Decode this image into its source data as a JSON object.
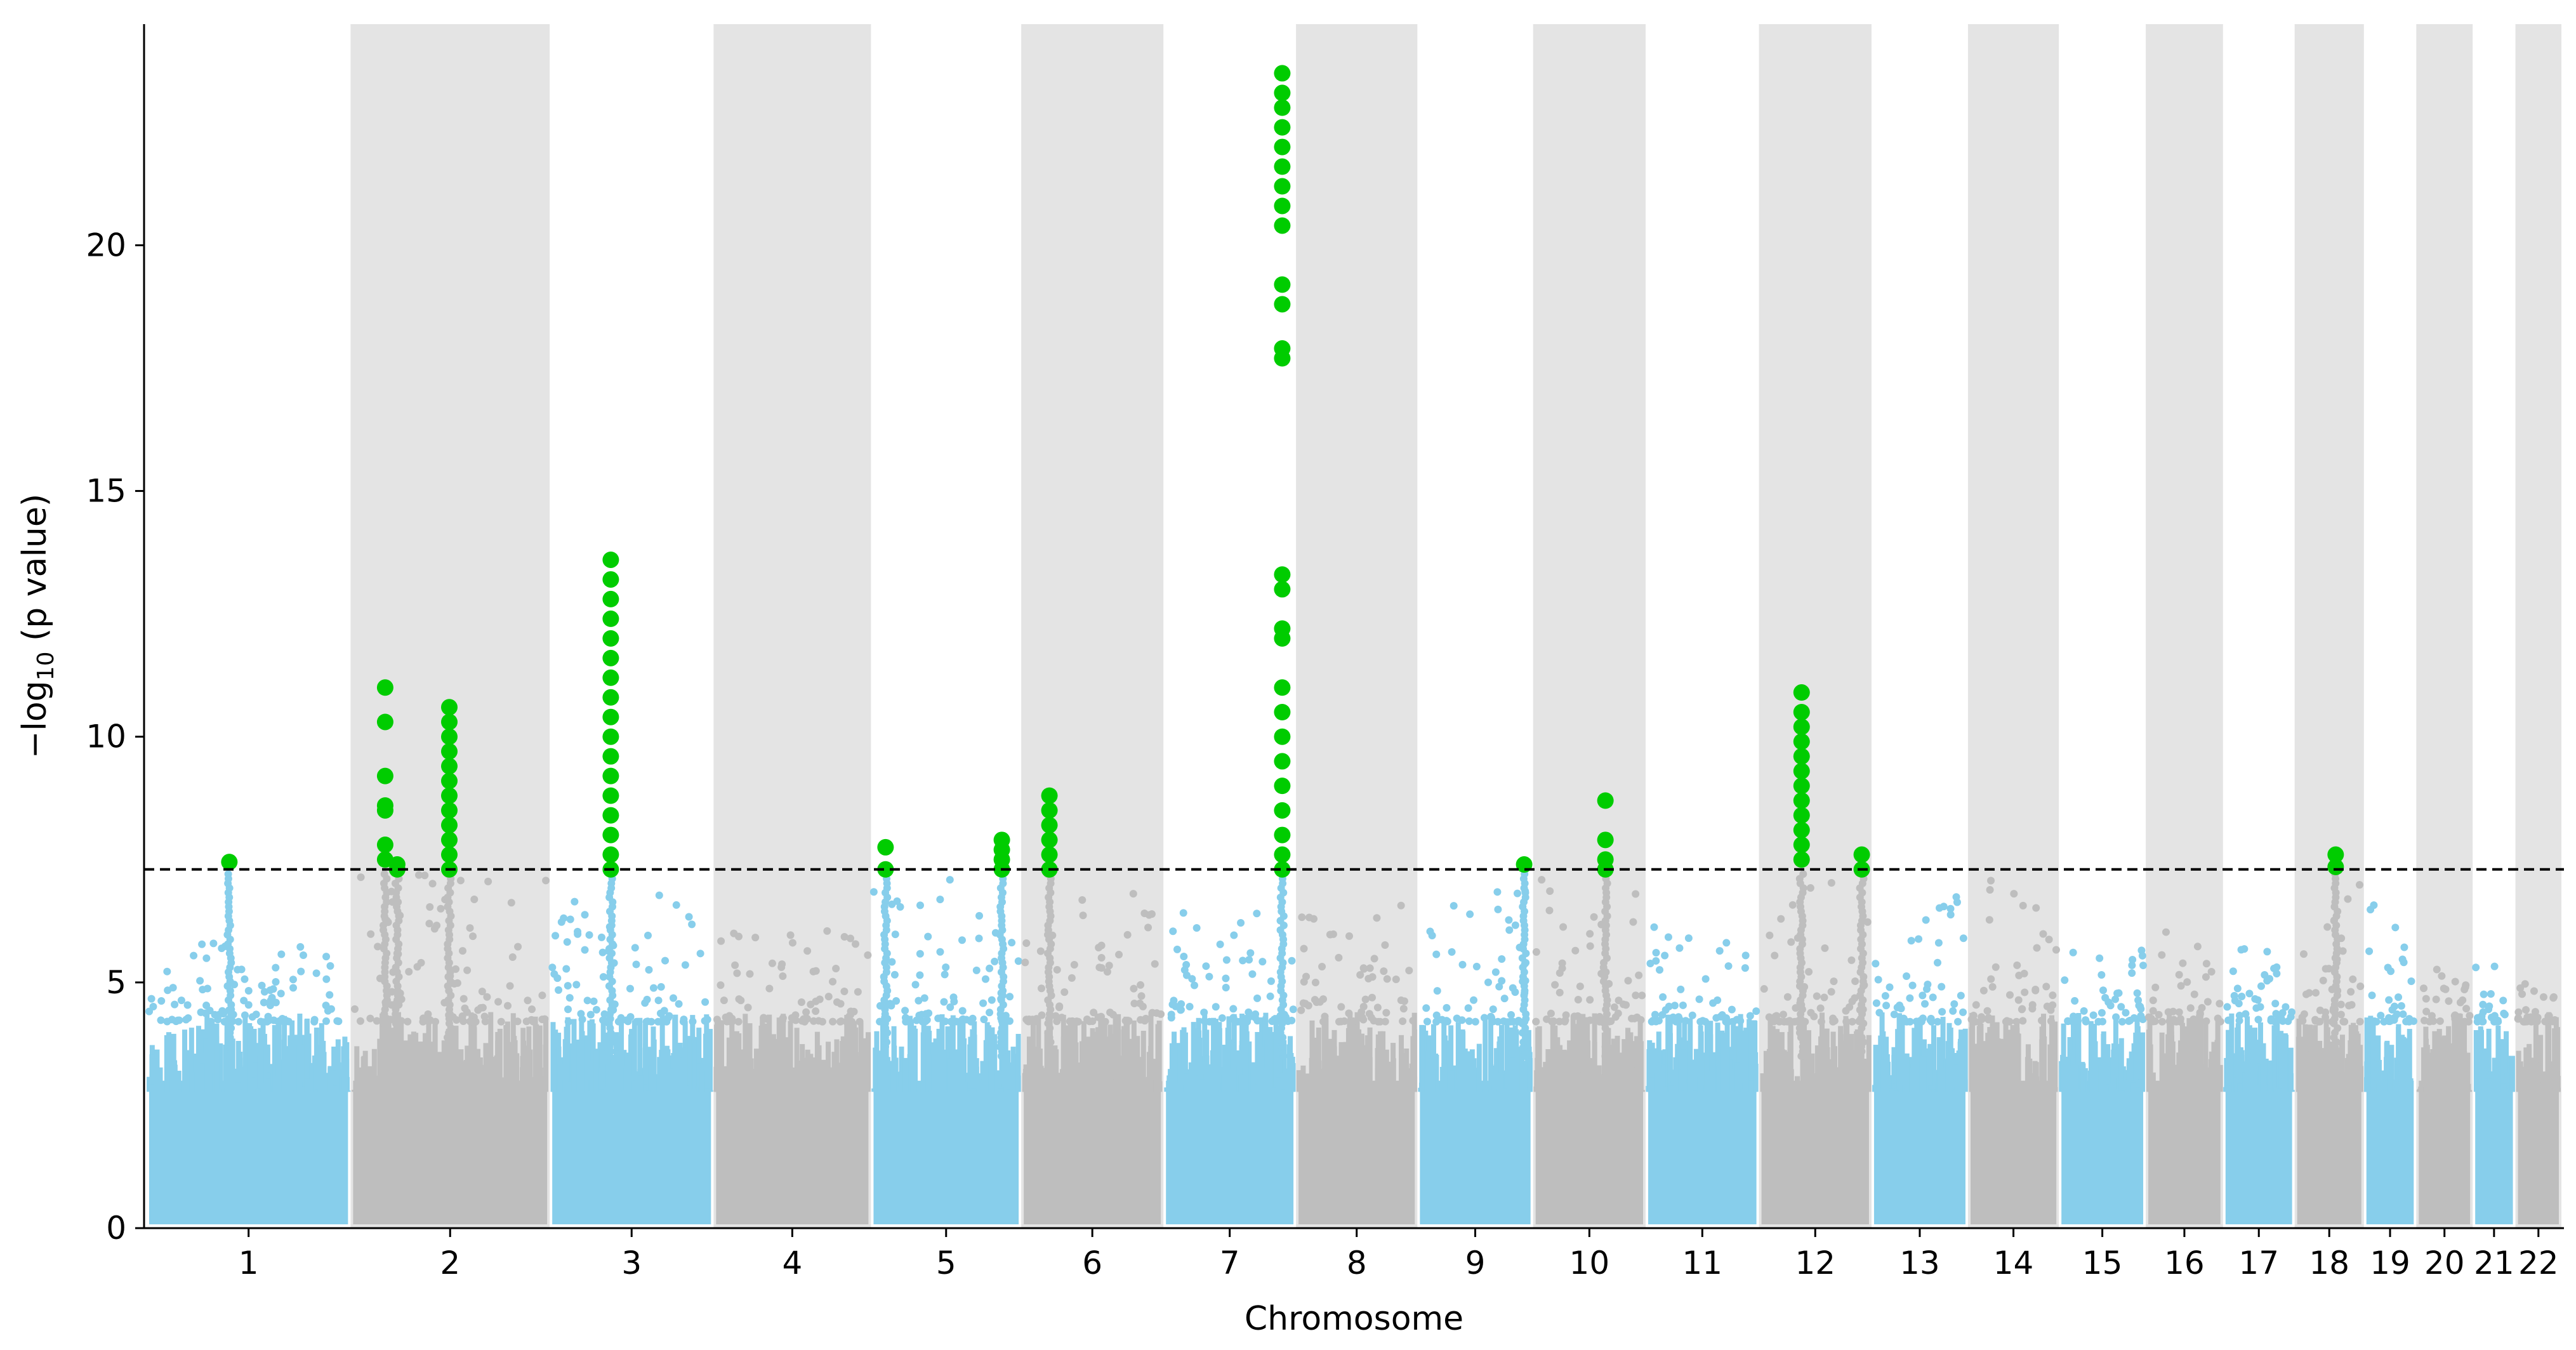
{
  "chart_data": {
    "type": "scatter",
    "subtype": "manhattan",
    "xlabel": "Chromosome",
    "ylabel_prefix": "−log",
    "ylabel_subscript": "10",
    "ylabel_suffix": " (p value)",
    "ylim": [
      0,
      24.5
    ],
    "yticks": [
      0,
      5,
      10,
      15,
      20
    ],
    "significance_threshold": 7.3,
    "grid": false,
    "alternating_band_color": "#e4e4e4",
    "colors": {
      "odd_chromosome": "#87ceeb",
      "even_chromosome": "#bebebe",
      "significant": "#00cc00",
      "threshold_line": "#000000"
    },
    "chromosomes": [
      {
        "label": "1",
        "start": 0,
        "end": 248
      },
      {
        "label": "2",
        "start": 248,
        "end": 490
      },
      {
        "label": "3",
        "start": 490,
        "end": 688
      },
      {
        "label": "4",
        "start": 688,
        "end": 878
      },
      {
        "label": "5",
        "start": 878,
        "end": 1059
      },
      {
        "label": "6",
        "start": 1059,
        "end": 1230
      },
      {
        "label": "7",
        "start": 1230,
        "end": 1389
      },
      {
        "label": "8",
        "start": 1389,
        "end": 1534
      },
      {
        "label": "9",
        "start": 1534,
        "end": 1672
      },
      {
        "label": "10",
        "start": 1672,
        "end": 1806
      },
      {
        "label": "11",
        "start": 1806,
        "end": 1941
      },
      {
        "label": "12",
        "start": 1941,
        "end": 2075
      },
      {
        "label": "13",
        "start": 2075,
        "end": 2189
      },
      {
        "label": "14",
        "start": 2189,
        "end": 2296
      },
      {
        "label": "15",
        "start": 2296,
        "end": 2398
      },
      {
        "label": "16",
        "start": 2398,
        "end": 2488
      },
      {
        "label": "17",
        "start": 2488,
        "end": 2571
      },
      {
        "label": "18",
        "start": 2571,
        "end": 2651
      },
      {
        "label": "19",
        "start": 2651,
        "end": 2710
      },
      {
        "label": "20",
        "start": 2710,
        "end": 2774
      },
      {
        "label": "21",
        "start": 2774,
        "end": 2821
      },
      {
        "label": "22",
        "start": 2821,
        "end": 2872
      }
    ],
    "background_peak_max": [
      5.8,
      7.2,
      6.8,
      6.4,
      7.2,
      7.0,
      6.5,
      6.6,
      6.9,
      7.2,
      6.3,
      7.1,
      6.8,
      7.2,
      5.7,
      6.5,
      5.7,
      7.0,
      6.6,
      5.4,
      5.6,
      5.0
    ],
    "significant_hits": [
      {
        "chr": "1",
        "pos": 100,
        "values": [
          7.45
        ]
      },
      {
        "chr": "2",
        "pos": 40,
        "values": [
          7.5,
          7.8,
          8.5,
          8.6,
          9.2,
          10.3,
          11.0
        ]
      },
      {
        "chr": "2",
        "pos": 55,
        "values": [
          7.3,
          7.4
        ]
      },
      {
        "chr": "2",
        "pos": 120,
        "values": [
          7.3,
          7.6,
          7.9,
          8.2,
          8.5,
          8.8,
          9.1,
          9.4,
          9.7,
          10.0,
          10.3,
          10.6
        ]
      },
      {
        "chr": "3",
        "pos": 73,
        "values": [
          7.3,
          7.6,
          8.0,
          8.4,
          8.8,
          9.2,
          9.6,
          10.0,
          10.4,
          10.8,
          11.2,
          11.6,
          12.0,
          12.4,
          12.8,
          13.2,
          13.6
        ]
      },
      {
        "chr": "5",
        "pos": 15,
        "values": [
          7.3,
          7.75
        ]
      },
      {
        "chr": "5",
        "pos": 160,
        "values": [
          7.3,
          7.5,
          7.7,
          7.9
        ]
      },
      {
        "chr": "6",
        "pos": 32,
        "values": [
          7.3,
          7.6,
          7.9,
          8.2,
          8.5,
          8.8
        ]
      },
      {
        "chr": "7",
        "pos": 145,
        "values": [
          7.3,
          7.6,
          8.0,
          8.5,
          9.0,
          9.5,
          10.0,
          10.5,
          11.0,
          12.0,
          12.2,
          13.0,
          13.3,
          17.7,
          17.9,
          18.8,
          19.2,
          20.4,
          20.8,
          21.2,
          21.6,
          22.0,
          22.4,
          22.8,
          23.1,
          23.5
        ]
      },
      {
        "chr": "9",
        "pos": 130,
        "values": [
          7.4
        ]
      },
      {
        "chr": "10",
        "pos": 87,
        "values": [
          7.3,
          7.5,
          7.9,
          8.7
        ]
      },
      {
        "chr": "12",
        "pos": 50,
        "values": [
          7.5,
          7.8,
          8.1,
          8.4,
          8.7,
          9.0,
          9.3,
          9.6,
          9.9,
          10.2,
          10.5,
          10.9
        ]
      },
      {
        "chr": "12",
        "pos": 125,
        "values": [
          7.3,
          7.6
        ]
      },
      {
        "chr": "18",
        "pos": 48,
        "values": [
          7.35,
          7.6
        ]
      }
    ]
  }
}
